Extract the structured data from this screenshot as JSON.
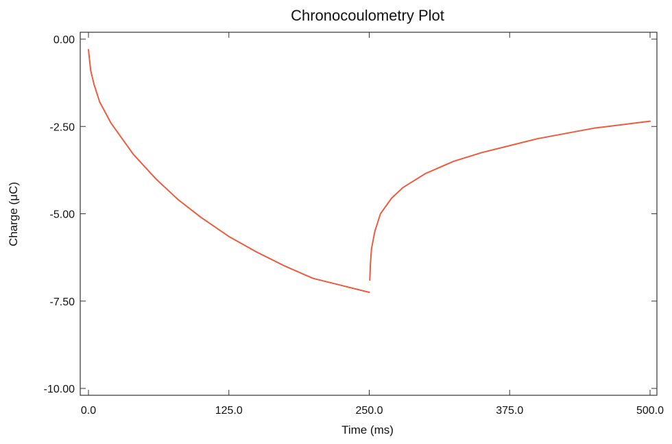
{
  "chart_data": {
    "type": "line",
    "title": "Chronocoulometry Plot",
    "xlabel": "Time (ms)",
    "ylabel": "Charge (μC)",
    "xlim": [
      0,
      500
    ],
    "ylim": [
      -10,
      0
    ],
    "x_ticks": [
      "0.0",
      "125.0",
      "250.0",
      "375.0",
      "500.0"
    ],
    "y_ticks": [
      "0.00",
      "-2.50",
      "-5.00",
      "-7.50",
      "-10.00"
    ],
    "grid": false,
    "legend": "none",
    "colors": {
      "line": "#ef5a3c",
      "axis": "#333333",
      "background": "#ffffff"
    },
    "series": [
      {
        "x": [
          0,
          1,
          2,
          5,
          10,
          20,
          40,
          60,
          80,
          100,
          125,
          150,
          175,
          200,
          225,
          250,
          250.5,
          251,
          252,
          255,
          260,
          270,
          280,
          300,
          325,
          350,
          375,
          400,
          425,
          450,
          475,
          500
        ],
        "values": [
          -0.3,
          -0.6,
          -0.9,
          -1.3,
          -1.8,
          -2.4,
          -3.3,
          -4.0,
          -4.6,
          -5.1,
          -5.65,
          -6.1,
          -6.5,
          -6.85,
          -7.05,
          -7.25,
          -6.9,
          -6.45,
          -6.0,
          -5.5,
          -5.0,
          -4.55,
          -4.25,
          -3.85,
          -3.5,
          -3.25,
          -3.05,
          -2.85,
          -2.7,
          -2.55,
          -2.45,
          -2.35
        ]
      }
    ]
  }
}
